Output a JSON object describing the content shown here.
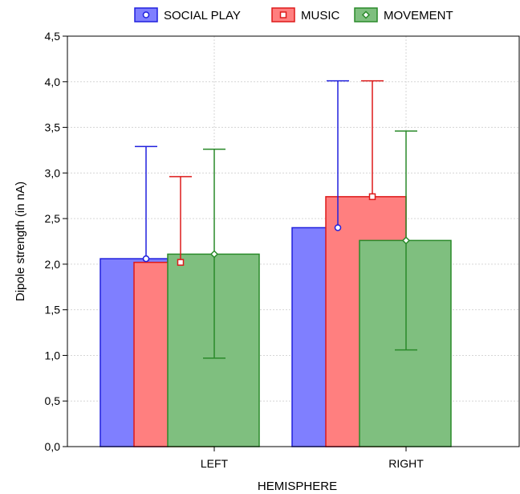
{
  "chart_data": {
    "type": "bar",
    "xlabel": "HEMISPHERE",
    "ylabel": "Dipole strength (in nA)",
    "categories": [
      "LEFT",
      "RIGHT"
    ],
    "ylim": [
      0,
      4.5
    ],
    "yticks": [
      "0,0",
      "0,5",
      "1,0",
      "1,5",
      "2,0",
      "2,5",
      "3,0",
      "3,5",
      "4,0",
      "4,5"
    ],
    "grid": true,
    "legend_position": "top",
    "series": [
      {
        "name": "SOCIAL PLAY",
        "color": "#7f7fff",
        "edge": "#2020dd",
        "marker": "circle",
        "values": [
          2.06,
          2.4
        ],
        "error_high": [
          3.29,
          null
        ],
        "error_low": [
          null,
          null
        ]
      },
      {
        "name": "MUSIC",
        "color": "#ff7f7f",
        "edge": "#dd1a1a",
        "marker": "square",
        "values": [
          2.02,
          2.74
        ],
        "error_high": [
          2.96,
          4.01
        ],
        "error_low": [
          null,
          null
        ]
      },
      {
        "name": "MOVEMENT",
        "color": "#7fbf7f",
        "edge": "#2a8a2a",
        "marker": "diamond",
        "values": [
          2.11,
          2.26
        ],
        "error_high": [
          3.26,
          3.46
        ],
        "error_low": [
          0.97,
          1.06
        ]
      }
    ],
    "right_social_error_high": 4.01
  }
}
